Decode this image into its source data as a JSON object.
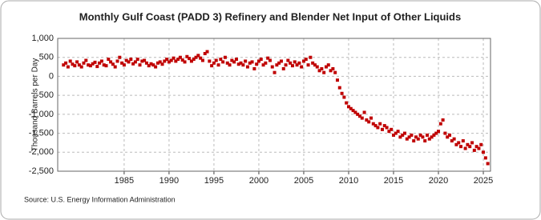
{
  "chart_data": {
    "type": "scatter",
    "title": "Monthly Gulf Coast (PADD 3) Refinery and Blender Net Input of Other Liquids",
    "y_label": "Thousand Barrels per Day",
    "source": "Source: U.S. Energy Information Administration",
    "xlim": [
      1977.6,
      2025.8
    ],
    "xticks": [
      1985,
      1990,
      1995,
      2000,
      2005,
      2010,
      2015,
      2020,
      2025
    ],
    "ylim": [
      -2500,
      1000
    ],
    "yticks": [
      {
        "value": -2500,
        "label": "-2,500"
      },
      {
        "value": -2000,
        "label": "-2,000"
      },
      {
        "value": -1500,
        "label": "-1,500"
      },
      {
        "value": -1000,
        "label": "-1,000"
      },
      -500,
      0,
      500,
      {
        "value": 1000,
        "label": "1,000"
      }
    ],
    "grid": true,
    "series": [
      {
        "color": "#c00000",
        "x": [
          1978.25,
          1978.5,
          1978.75,
          1979,
          1979.25,
          1979.5,
          1979.75,
          1980,
          1980.25,
          1980.5,
          1980.75,
          1981,
          1981.25,
          1981.5,
          1981.75,
          1982,
          1982.25,
          1982.5,
          1982.75,
          1983,
          1983.25,
          1983.5,
          1983.75,
          1984,
          1984.25,
          1984.5,
          1984.75,
          1985,
          1985.25,
          1985.5,
          1985.75,
          1986,
          1986.25,
          1986.5,
          1986.75,
          1987,
          1987.25,
          1987.5,
          1987.75,
          1988,
          1988.25,
          1988.5,
          1988.75,
          1989,
          1989.25,
          1989.5,
          1989.75,
          1990,
          1990.25,
          1990.5,
          1990.75,
          1991,
          1991.25,
          1991.5,
          1991.75,
          1992,
          1992.25,
          1992.5,
          1992.75,
          1993,
          1993.25,
          1993.5,
          1993.75,
          1994,
          1994.25,
          1994.5,
          1994.75,
          1995,
          1995.25,
          1995.5,
          1995.75,
          1996,
          1996.25,
          1996.5,
          1996.75,
          1997,
          1997.25,
          1997.5,
          1997.75,
          1998,
          1998.25,
          1998.5,
          1998.75,
          1999,
          1999.25,
          1999.5,
          1999.75,
          2000,
          2000.25,
          2000.5,
          2000.75,
          2001,
          2001.25,
          2001.5,
          2001.75,
          2002,
          2002.25,
          2002.5,
          2002.75,
          2003,
          2003.25,
          2003.5,
          2003.75,
          2004,
          2004.25,
          2004.5,
          2004.75,
          2005,
          2005.25,
          2005.5,
          2005.75,
          2006,
          2006.25,
          2006.5,
          2006.75,
          2007,
          2007.25,
          2007.5,
          2007.75,
          2008,
          2008.25,
          2008.5,
          2008.75,
          2009,
          2009.25,
          2009.5,
          2009.75,
          2010,
          2010.25,
          2010.5,
          2010.75,
          2011,
          2011.25,
          2011.5,
          2011.75,
          2012,
          2012.25,
          2012.5,
          2012.75,
          2013,
          2013.25,
          2013.5,
          2013.75,
          2014,
          2014.25,
          2014.5,
          2014.75,
          2015,
          2015.25,
          2015.5,
          2015.75,
          2016,
          2016.25,
          2016.5,
          2016.75,
          2017,
          2017.25,
          2017.5,
          2017.75,
          2018,
          2018.25,
          2018.5,
          2018.75,
          2019,
          2019.25,
          2019.5,
          2019.75,
          2020,
          2020.25,
          2020.5,
          2020.75,
          2021,
          2021.25,
          2021.5,
          2021.75,
          2022,
          2022.25,
          2022.5,
          2022.75,
          2023,
          2023.25,
          2023.5,
          2023.75,
          2024,
          2024.25,
          2024.5,
          2024.75,
          2025,
          2025.25,
          2025.5
        ],
        "values": [
          300,
          350,
          250,
          400,
          320,
          280,
          380,
          300,
          250,
          350,
          420,
          300,
          280,
          330,
          370,
          260,
          350,
          400,
          300,
          280,
          450,
          380,
          320,
          250,
          400,
          500,
          350,
          300,
          420,
          380,
          450,
          330,
          380,
          450,
          300,
          400,
          420,
          350,
          280,
          330,
          300,
          250,
          350,
          380,
          320,
          400,
          450,
          380,
          420,
          480,
          400,
          450,
          500,
          430,
          380,
          520,
          470,
          400,
          450,
          500,
          550,
          480,
          420,
          600,
          650,
          400,
          280,
          350,
          420,
          300,
          450,
          380,
          500,
          350,
          300,
          420,
          380,
          450,
          320,
          350,
          300,
          400,
          250,
          350,
          380,
          200,
          320,
          400,
          450,
          300,
          350,
          480,
          420,
          250,
          100,
          300,
          350,
          400,
          200,
          300,
          420,
          350,
          280,
          380,
          300,
          350,
          250,
          400,
          450,
          300,
          500,
          350,
          300,
          250,
          150,
          200,
          100,
          250,
          300,
          150,
          200,
          100,
          -100,
          -300,
          -450,
          -550,
          -700,
          -800,
          -850,
          -900,
          -950,
          -1000,
          -1050,
          -1100,
          -950,
          -1150,
          -1200,
          -1100,
          -1250,
          -1300,
          -1350,
          -1250,
          -1400,
          -1300,
          -1350,
          -1450,
          -1400,
          -1550,
          -1500,
          -1450,
          -1600,
          -1550,
          -1500,
          -1650,
          -1600,
          -1550,
          -1700,
          -1600,
          -1650,
          -1550,
          -1600,
          -1700,
          -1550,
          -1650,
          -1600,
          -1550,
          -1500,
          -1450,
          -1250,
          -1150,
          -1500,
          -1600,
          -1550,
          -1700,
          -1650,
          -1800,
          -1750,
          -1850,
          -1700,
          -1900,
          -1800,
          -1850,
          -1750,
          -1950,
          -1850,
          -1900,
          -1800,
          -2000,
          -2150,
          -2300
        ]
      }
    ]
  }
}
